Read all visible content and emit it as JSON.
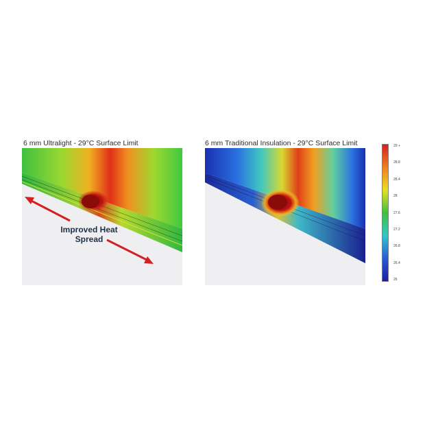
{
  "panels": [
    {
      "title": "6 mm Ultralight - 29°C Surface Limit"
    },
    {
      "title": "6 mm Traditional Insulation - 29°C Surface Limit"
    }
  ],
  "annotation": {
    "line1": "Improved Heat",
    "line2": "Spread"
  },
  "colors": {
    "hot_core": "#8b0a0a",
    "red": "#d42020",
    "orange": "#f08020",
    "yellow": "#e8e020",
    "green": "#40c040",
    "cyan": "#30c8c8",
    "blue": "#2a5ad8",
    "deep_blue": "#1a20a0",
    "arrow": "#d42020",
    "floor": "#efeff1"
  },
  "scale": {
    "ticks": [
      "29 +",
      "28.8",
      "28.4",
      "28",
      "27.6",
      "27.2",
      "26.8",
      "26.4",
      "26"
    ]
  }
}
